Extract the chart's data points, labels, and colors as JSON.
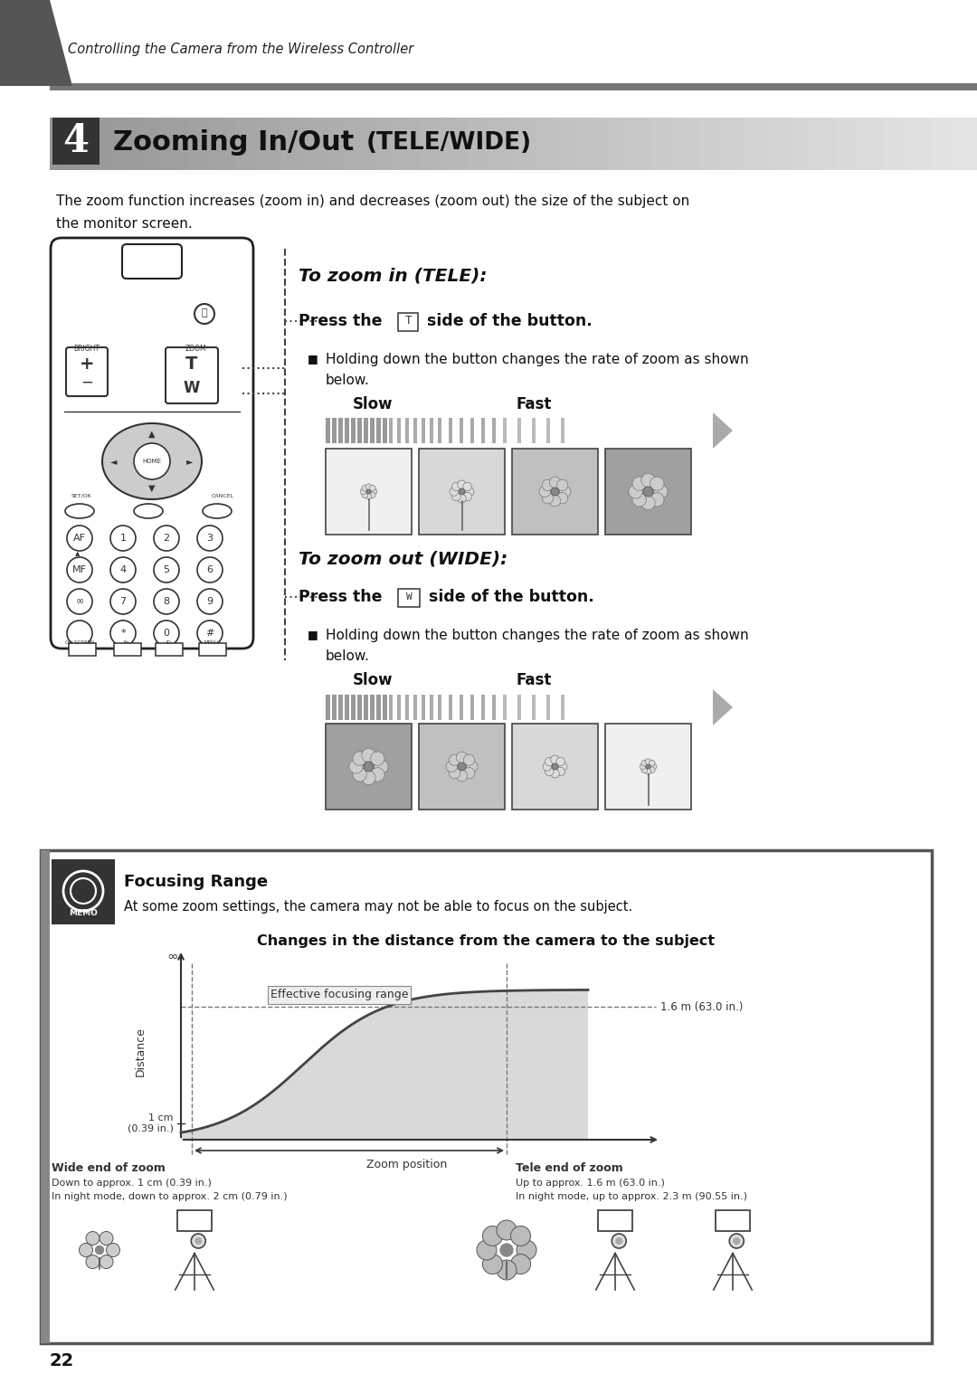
{
  "bg_color": "#ffffff",
  "page_number": "22",
  "header_text": "Controlling the Camera from the Wireless Controller",
  "section_number": "4",
  "section_title_bold": "Zooming In/Out ",
  "section_title_mono": "(TELE/WIDE)",
  "intro_text1": "The zoom function increases (zoom in) and decreases (zoom out) the size of the subject on",
  "intro_text2": "the monitor screen.",
  "tele_heading": "To zoom in (TELE):",
  "tele_press_before": "Press the ",
  "tele_button_symbol": "T",
  "tele_press_after": " side of the button.",
  "tele_bullet": "Holding down the button changes the rate of zoom as shown\nbelow.",
  "slow_label": "Slow",
  "fast_label": "Fast",
  "wide_heading": "To zoom out (WIDE):",
  "wide_press_before": "Press the ",
  "wide_button_symbol": "W",
  "wide_press_after": " side of the button.",
  "wide_bullet": "Holding down the button changes the rate of zoom as shown\nbelow.",
  "memo_title": "Focusing Range",
  "memo_text": "At some zoom settings, the camera may not be able to focus on the subject.",
  "memo_subtitle": "Changes in the distance from the camera to the subject",
  "memo_y_label": "Distance",
  "memo_x_label": "Zoom position",
  "memo_curve_label": "Effective focusing range",
  "memo_1cm": "1 cm\n(0.39 in.)",
  "memo_1p6m": "1.6 m (63.0 in.)",
  "memo_inf": "∞",
  "memo_wide_title": "Wide end of zoom",
  "memo_wide_desc1": "Down to approx. 1 cm (0.39 in.)",
  "memo_wide_desc2": "In night mode, down to approx. 2 cm (0.79 in.)",
  "memo_tele_title": "Tele end of zoom",
  "memo_tele_desc1": "Up to approx. 1.6 m (63.0 in.)",
  "memo_tele_desc2": "In night mode, up to approx. 2.3 m (90.55 in.)"
}
